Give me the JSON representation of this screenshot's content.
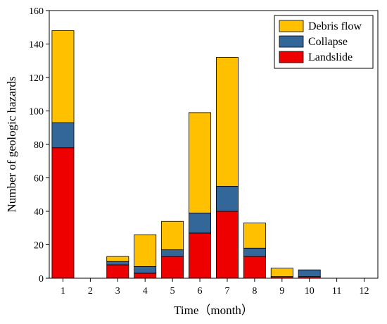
{
  "chart_data": {
    "type": "bar",
    "stacked": true,
    "categories": [
      "1",
      "2",
      "3",
      "4",
      "5",
      "6",
      "7",
      "8",
      "9",
      "10",
      "11",
      "12"
    ],
    "series": [
      {
        "name": "Landslide",
        "color": "#ee0000",
        "values": [
          78,
          0,
          8,
          3,
          13,
          27,
          40,
          13,
          1,
          1,
          0,
          0
        ]
      },
      {
        "name": "Collapse",
        "color": "#336699",
        "values": [
          15,
          0,
          2,
          4,
          4,
          12,
          15,
          5,
          0,
          4,
          0,
          0
        ]
      },
      {
        "name": "Debris flow",
        "color": "#ffc000",
        "values": [
          55,
          0,
          3,
          19,
          17,
          60,
          77,
          15,
          5,
          0,
          0,
          0
        ]
      }
    ],
    "legend_order": [
      "Debris flow",
      "Collapse",
      "Landslide"
    ],
    "title": "",
    "xlabel": "Time（month）",
    "ylabel": "Number of geologic hazards",
    "ylim": [
      0,
      160
    ],
    "yticks": [
      0,
      20,
      40,
      60,
      80,
      100,
      120,
      140,
      160
    ],
    "grid": false,
    "legend_position": "top-right"
  }
}
